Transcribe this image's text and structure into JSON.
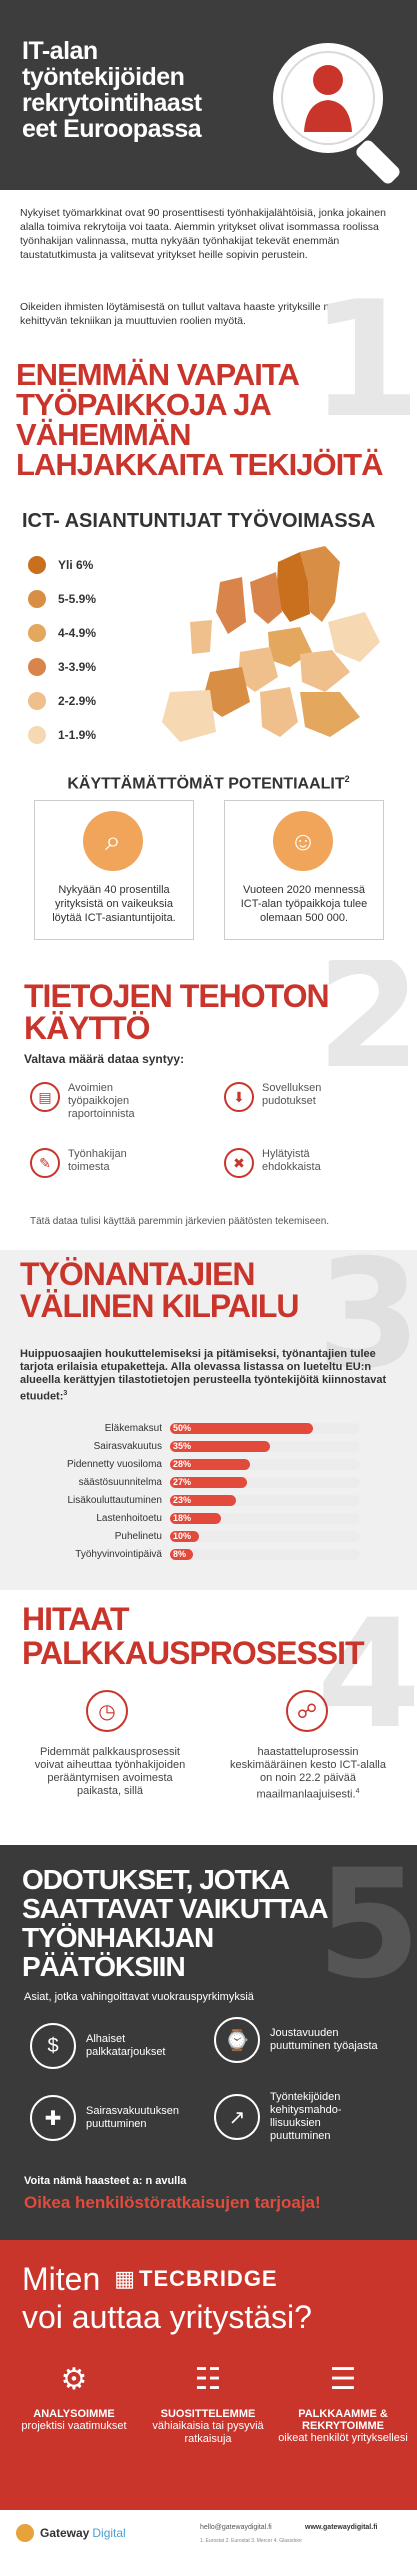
{
  "header": {
    "title": "IT-alan työntekijöiden rekrytointihaasteet Euroopassa",
    "title_lines": [
      "IT-alan",
      "työntekijöiden",
      "rekrytointihaast",
      "eet Euroopassa"
    ]
  },
  "intro": {
    "p1": "Nykyiset työmarkkinat ovat 90 prosenttisesti työnhakijalähtöisiä, jonka jokainen alalla toimiva rekrytoija voi taata. Aiemmin yritykset olivat isommassa roolissa työnhakijan valinnassa, mutta nykyään työnhakijat tekevät enemmän taustatutkimusta ja valitsevat yritykset heille sopivin perustein.",
    "p2": "Oikeiden ihmisten löytämisestä on tullut valtava haaste yrityksille nopeasti kehittyvän tekniikan ja muuttuvien roolien myötä."
  },
  "section1": {
    "number": "1",
    "title_lines": [
      "ENEMMÄN VAPAITA",
      "TYÖPAIKKOJA JA",
      "VÄHEMMÄN",
      "LAHJAKKAITA TEKIJÖITÄ"
    ],
    "subtitle": "ICT- ASIANTUNTIJAT TYÖVOIMASSA",
    "legend": [
      {
        "label": "Yli 6%",
        "color": "#c9701f"
      },
      {
        "label": "5-5.9%",
        "color": "#d98e45"
      },
      {
        "label": "4-4.9%",
        "color": "#e3a85d"
      },
      {
        "label": "3-3.9%",
        "color": "#d9844b"
      },
      {
        "label": "2-2.9%",
        "color": "#efc08c"
      },
      {
        "label": "1-1.9%",
        "color": "#f6d9b2"
      }
    ],
    "unused_title": "KÄYTTÄMÄTTÖMÄT POTENTIAALIT",
    "unused_sup": "2",
    "cards": [
      {
        "text": "Nykyään 40 prosentilla yrityksistä on vaikeuksia löytää ICT-asiantuntijoita."
      },
      {
        "text": "Vuoteen 2020 mennessä ICT-alan työpaikkoja tulee olemaan 500 000."
      }
    ]
  },
  "section2": {
    "number": "2",
    "title_lines": [
      "TIETOJEN TEHOTON",
      "KÄYTTÖ"
    ],
    "subtitle": "Valtava määrä dataa syntyy:",
    "items": [
      {
        "label": "Avoimien työpaikkojen raportoinnista"
      },
      {
        "label": "Sovelluksen pudotukset"
      },
      {
        "label": "Työnhakijan toimesta"
      },
      {
        "label": "Hylätyistä ehdokkaista"
      }
    ],
    "note": "Tätä dataa tulisi käyttää paremmin järkevien päätösten tekemiseen."
  },
  "section3": {
    "number": "3",
    "title_lines": [
      "TYÖNANTAJIEN",
      "VÄLINEN KILPAILU"
    ],
    "text": "Huippuosaajien houkuttelemiseksi ja pitämiseksi, työnantajien tulee tarjota erilaisia etupaketteja. Alla olevassa listassa on lueteltu EU:n alueella kerättyjen tilastotietojen perusteella työntekijöitä kiinnostavat etuudet:",
    "text_sup": "3"
  },
  "chart_data": {
    "type": "bar",
    "categories": [
      "Eläkemaksut",
      "Sairasvakuutus",
      "Pidennetty vuosiloma",
      "säästösuunnitelma",
      "Lisäkouluttautuminen",
      "Lastenhoitoetu",
      "Puhelinetu",
      "Työhyvinvointipäivä"
    ],
    "values": [
      50,
      35,
      28,
      27,
      23,
      18,
      10,
      8
    ],
    "value_labels": [
      "50%",
      "35%",
      "28%",
      "27%",
      "23%",
      "18%",
      "10%",
      "8%"
    ],
    "ylim": [
      0,
      100
    ]
  },
  "section4": {
    "number": "4",
    "title_lines": [
      "HITAAT",
      "PALKKAUSPROSESSIT"
    ],
    "items": [
      {
        "text": "Pidemmät palkkausprosessit voivat aiheuttaa työnhakijoiden peräänty­misen avoimesta paikasta, sillä"
      },
      {
        "text": "haastatteluprosessin keskimääräinen kesto ICT-alalla on noin 22.2 päivää maailmanlaajuisesti.",
        "sup": "4"
      }
    ]
  },
  "section5": {
    "number": "5",
    "title_lines": [
      "ODOTUKSET, JOTKA",
      "SAATTAVAT VAIKUTTAA",
      "TYÖNHAKIJAN",
      "PÄÄTÖKSIIN"
    ],
    "subtitle": "Asiat, jotka vahingoittavat vuokrauspyrkimyksiä",
    "items": [
      {
        "label": "Alhaiset palkkatarjoukset",
        "icon": "$"
      },
      {
        "label": "Joustavuuden puuttuminen työajasta",
        "icon": "⌚"
      },
      {
        "label": "Sairasvakuutuksen puuttuminen",
        "icon": "✚"
      },
      {
        "label": "Työntekijöiden kehitysmahdo­llisuuksien puuttuminen",
        "icon": "↗"
      }
    ],
    "footer_small": "Voita nämä haasteet a: n avulla",
    "footer_big": "Oikea henkilöstöratkaisujen tarjoaja!"
  },
  "cta": {
    "title_pre": "Miten",
    "brand": "TECBRIDGE",
    "title_line2": "voi auttaa yritystäsi?",
    "items": [
      {
        "title": "ANALYSOIMME",
        "text": "projektisi vaatimukset"
      },
      {
        "title": "SUOSITTELEMME",
        "text": "vähiaikaisia tai pysyviä ratkaisuja"
      },
      {
        "title": "PALKKAAMME & REKRYTOIMME",
        "text": "oikeat henkilöt yrityksellesi"
      }
    ]
  },
  "footer": {
    "brand": "Gateway",
    "brand2": "Digital",
    "email": "hello@gatewaydigital.fi",
    "website": "www.gatewaydigital.fi",
    "sources": "1. Eurostat 2. Eurostat 3. Mercer 4. Glassdoor"
  },
  "colors": {
    "accent": "#c9342b",
    "dark": "#3a3a3a",
    "cta_red": "#c9342b"
  }
}
